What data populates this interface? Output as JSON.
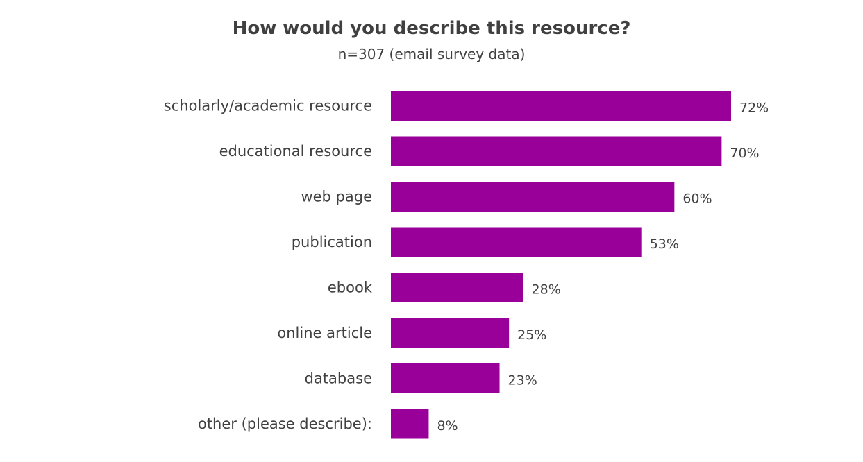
{
  "chart_data": {
    "type": "bar",
    "orientation": "horizontal",
    "title": "How would you describe this resource?",
    "subtitle": "n=307 (email survey data)",
    "categories": [
      "scholarly/academic resource",
      "educational resource",
      "web page",
      "publication",
      "ebook",
      "online article",
      "database",
      "other (please describe):"
    ],
    "values": [
      72,
      70,
      60,
      53,
      28,
      25,
      23,
      8
    ],
    "value_labels": [
      "72%",
      "70%",
      "60%",
      "53%",
      "28%",
      "25%",
      "23%",
      "8%"
    ],
    "unit": "%",
    "xlim": [
      0,
      100
    ],
    "grid": false,
    "bar_color": "#990099"
  }
}
